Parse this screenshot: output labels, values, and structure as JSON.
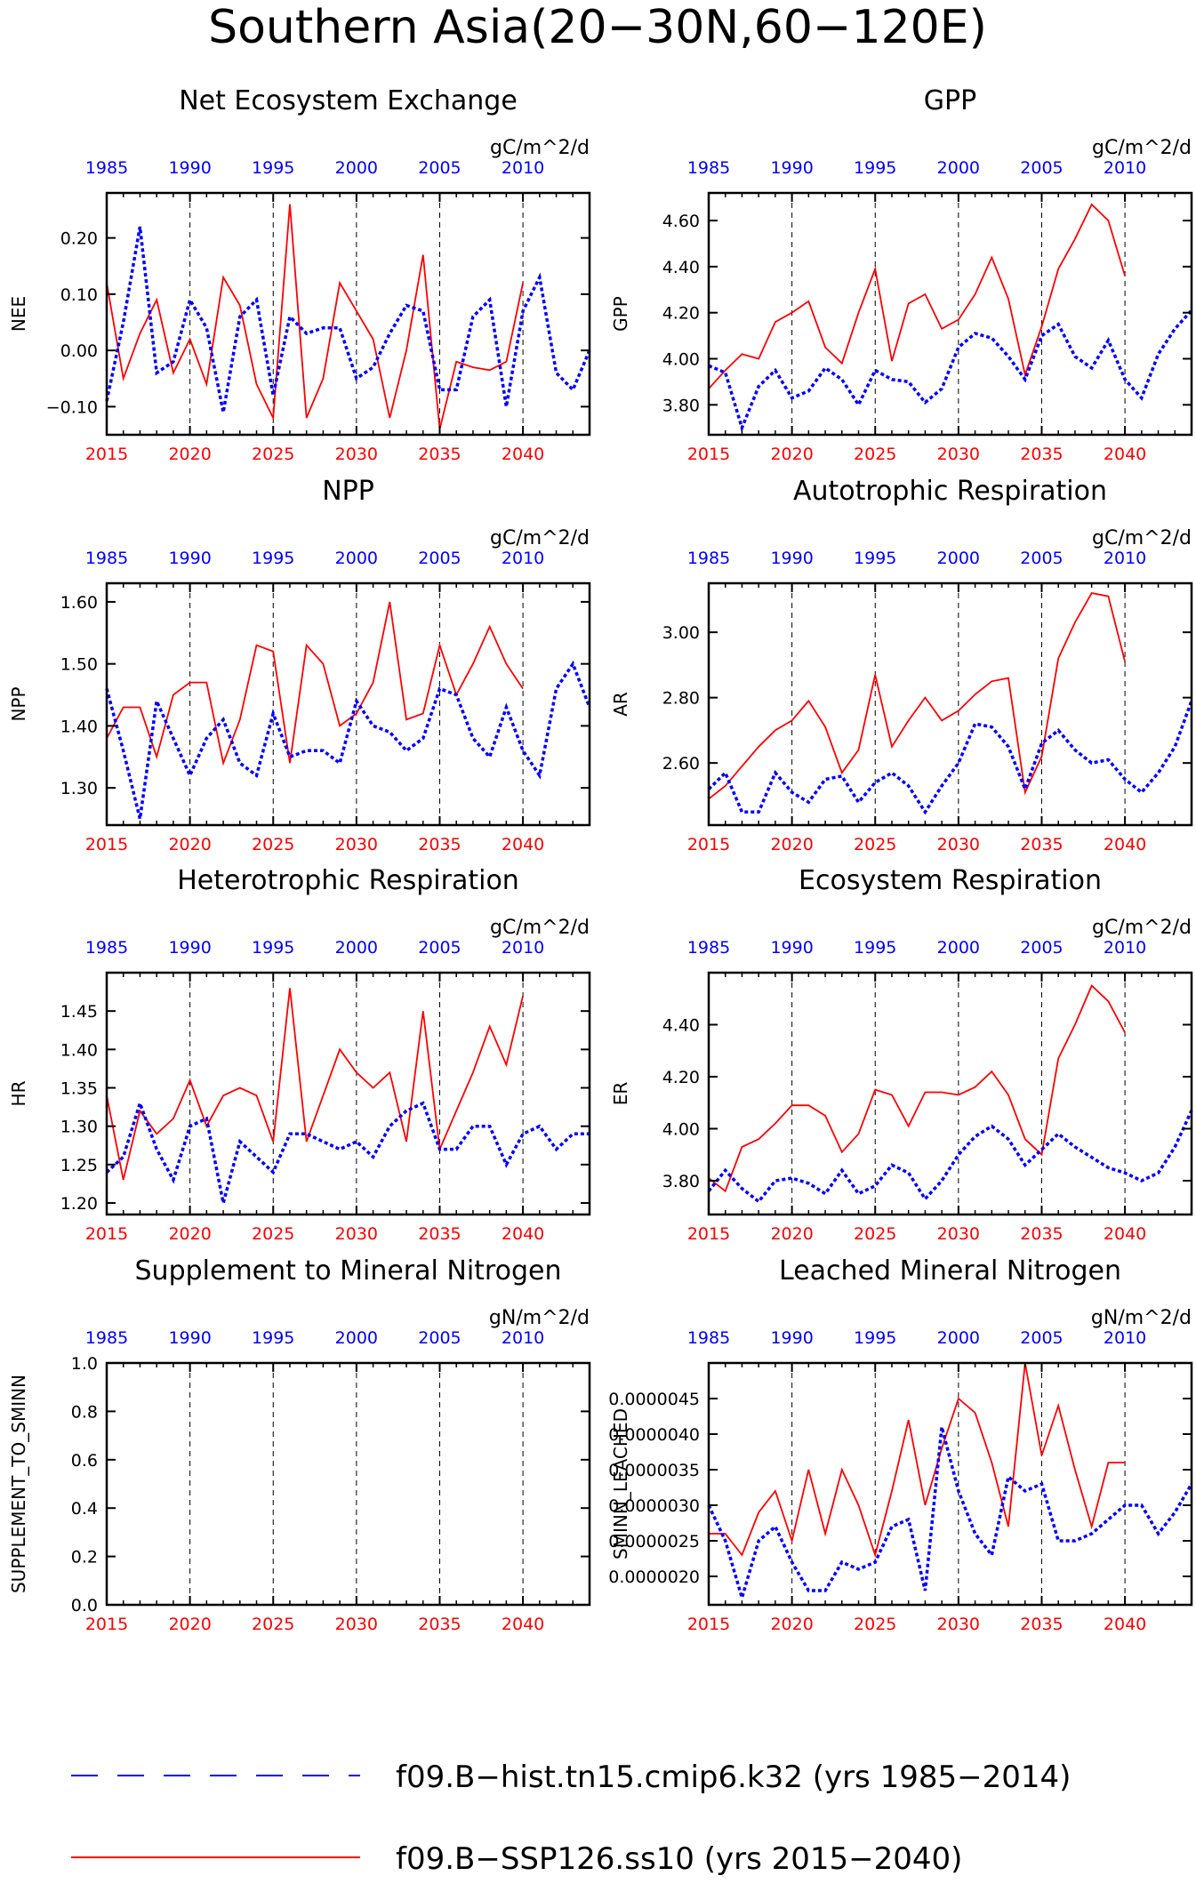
{
  "figure": {
    "title": "Southern Asia(20−30N,60−120E)",
    "bottom_axis_ticks": [
      "2015",
      "2020",
      "2025",
      "2030",
      "2035",
      "2040"
    ],
    "top_axis_ticks": [
      "1985",
      "1990",
      "1995",
      "2000",
      "2005",
      "2010"
    ],
    "colors": {
      "ssp": "#ff0000",
      "hist": "#0000ff",
      "frame": "#000000"
    },
    "legend": [
      {
        "label": "f09.B−hist.tn15.cmip6.k32 (yrs 1985−2014)",
        "style": "dashed",
        "color": "#0000ff"
      },
      {
        "label": "f09.B−SSP126.ss10 (yrs 2015−2040)",
        "style": "solid",
        "color": "#ff0000"
      }
    ]
  },
  "chart_data": [
    {
      "type": "line",
      "title": "Net Ecosystem Exchange",
      "units": "gC/m^2/d",
      "ylabel": "NEE",
      "ylim": [
        -0.15,
        0.28
      ],
      "yticks": [
        -0.1,
        0.0,
        0.1,
        0.2
      ],
      "ytick_labels": [
        "−0.10",
        "0.00",
        "0.10",
        "0.20"
      ],
      "x_bottom": {
        "range": [
          2015,
          2044
        ]
      },
      "x_top": {
        "range": [
          1985,
          2014
        ]
      },
      "series": [
        {
          "name": "f09.B−SSP126.ss10",
          "x_start": 2015,
          "values": [
            0.12,
            -0.05,
            0.03,
            0.09,
            -0.04,
            0.02,
            -0.06,
            0.13,
            0.08,
            -0.06,
            -0.12,
            0.26,
            -0.12,
            -0.05,
            0.12,
            0.07,
            0.02,
            -0.12,
            0.0,
            0.17,
            -0.14,
            -0.02,
            -0.03,
            -0.035,
            -0.02,
            0.12
          ]
        },
        {
          "name": "f09.B−hist.tn15.cmip6.k32",
          "x_start": 1985,
          "values": [
            -0.09,
            0.05,
            0.22,
            -0.04,
            -0.02,
            0.09,
            0.04,
            -0.11,
            0.06,
            0.09,
            -0.08,
            0.06,
            0.03,
            0.04,
            0.04,
            -0.05,
            -0.03,
            0.03,
            0.08,
            0.07,
            -0.07,
            -0.07,
            0.06,
            0.09,
            -0.1,
            0.07,
            0.13,
            -0.04,
            -0.07,
            0.0
          ]
        }
      ]
    },
    {
      "type": "line",
      "title": "GPP",
      "units": "gC/m^2/d",
      "ylabel": "GPP",
      "ylim": [
        3.67,
        4.72
      ],
      "yticks": [
        3.8,
        4.0,
        4.2,
        4.4,
        4.6
      ],
      "ytick_labels": [
        "3.80",
        "4.00",
        "4.20",
        "4.40",
        "4.60"
      ],
      "x_bottom": {
        "range": [
          2015,
          2044
        ]
      },
      "x_top": {
        "range": [
          1985,
          2014
        ]
      },
      "series": [
        {
          "name": "f09.B−SSP126.ss10",
          "x_start": 2015,
          "values": [
            3.87,
            3.95,
            4.02,
            4.0,
            4.16,
            4.2,
            4.25,
            4.05,
            3.98,
            4.2,
            4.39,
            3.99,
            4.24,
            4.28,
            4.13,
            4.17,
            4.28,
            4.44,
            4.26,
            3.93,
            4.14,
            4.39,
            4.52,
            4.67,
            4.6,
            4.36
          ]
        },
        {
          "name": "f09.B−hist.tn15.cmip6.k32",
          "x_start": 1985,
          "values": [
            3.97,
            3.94,
            3.7,
            3.88,
            3.95,
            3.83,
            3.86,
            3.96,
            3.91,
            3.8,
            3.95,
            3.91,
            3.9,
            3.81,
            3.87,
            4.05,
            4.11,
            4.09,
            4.01,
            3.91,
            4.1,
            4.15,
            4.01,
            3.96,
            4.08,
            3.91,
            3.83,
            4.02,
            4.13,
            4.21
          ]
        }
      ]
    },
    {
      "type": "line",
      "title": "NPP",
      "units": "gC/m^2/d",
      "ylabel": "NPP",
      "ylim": [
        1.24,
        1.63
      ],
      "yticks": [
        1.3,
        1.4,
        1.5,
        1.6
      ],
      "ytick_labels": [
        "1.30",
        "1.40",
        "1.50",
        "1.60"
      ],
      "x_bottom": {
        "range": [
          2015,
          2044
        ]
      },
      "x_top": {
        "range": [
          1985,
          2014
        ]
      },
      "series": [
        {
          "name": "f09.B−SSP126.ss10",
          "x_start": 2015,
          "values": [
            1.38,
            1.43,
            1.43,
            1.35,
            1.45,
            1.47,
            1.47,
            1.34,
            1.41,
            1.53,
            1.52,
            1.34,
            1.53,
            1.5,
            1.4,
            1.42,
            1.47,
            1.6,
            1.41,
            1.42,
            1.53,
            1.45,
            1.5,
            1.56,
            1.5,
            1.46
          ]
        },
        {
          "name": "f09.B−hist.tn15.cmip6.k32",
          "x_start": 1985,
          "values": [
            1.46,
            1.36,
            1.25,
            1.44,
            1.38,
            1.32,
            1.38,
            1.41,
            1.34,
            1.32,
            1.42,
            1.35,
            1.36,
            1.36,
            1.34,
            1.44,
            1.4,
            1.39,
            1.36,
            1.38,
            1.46,
            1.45,
            1.38,
            1.35,
            1.43,
            1.36,
            1.32,
            1.46,
            1.5,
            1.43
          ]
        }
      ]
    },
    {
      "type": "line",
      "title": "Autotrophic Respiration",
      "units": "gC/m^2/d",
      "ylabel": "AR",
      "ylim": [
        2.41,
        3.15
      ],
      "yticks": [
        2.6,
        2.8,
        3.0
      ],
      "ytick_labels": [
        "2.60",
        "2.80",
        "3.00"
      ],
      "x_bottom": {
        "range": [
          2015,
          2044
        ]
      },
      "x_top": {
        "range": [
          1985,
          2014
        ]
      },
      "series": [
        {
          "name": "f09.B−SSP126.ss10",
          "x_start": 2015,
          "values": [
            2.49,
            2.53,
            2.59,
            2.65,
            2.7,
            2.73,
            2.79,
            2.71,
            2.57,
            2.64,
            2.87,
            2.65,
            2.73,
            2.8,
            2.73,
            2.76,
            2.81,
            2.85,
            2.86,
            2.51,
            2.62,
            2.92,
            3.03,
            3.12,
            3.11,
            2.91
          ]
        },
        {
          "name": "f09.B−hist.tn15.cmip6.k32",
          "x_start": 1985,
          "values": [
            2.52,
            2.57,
            2.45,
            2.45,
            2.57,
            2.51,
            2.48,
            2.55,
            2.56,
            2.48,
            2.54,
            2.57,
            2.53,
            2.45,
            2.53,
            2.6,
            2.72,
            2.71,
            2.65,
            2.52,
            2.66,
            2.7,
            2.64,
            2.6,
            2.61,
            2.55,
            2.51,
            2.57,
            2.65,
            2.79
          ]
        }
      ]
    },
    {
      "type": "line",
      "title": "Heterotrophic Respiration",
      "units": "gC/m^2/d",
      "ylabel": "HR",
      "ylim": [
        1.185,
        1.5
      ],
      "yticks": [
        1.2,
        1.25,
        1.3,
        1.35,
        1.4,
        1.45
      ],
      "ytick_labels": [
        "1.20",
        "1.25",
        "1.30",
        "1.35",
        "1.40",
        "1.45"
      ],
      "x_bottom": {
        "range": [
          2015,
          2044
        ]
      },
      "x_top": {
        "range": [
          1985,
          2014
        ]
      },
      "series": [
        {
          "name": "f09.B−SSP126.ss10",
          "x_start": 2015,
          "values": [
            1.34,
            1.23,
            1.32,
            1.29,
            1.31,
            1.36,
            1.3,
            1.34,
            1.35,
            1.34,
            1.28,
            1.48,
            1.28,
            1.34,
            1.4,
            1.37,
            1.35,
            1.37,
            1.28,
            1.45,
            1.27,
            1.32,
            1.37,
            1.43,
            1.38,
            1.47
          ]
        },
        {
          "name": "f09.B−hist.tn15.cmip6.k32",
          "x_start": 1985,
          "values": [
            1.24,
            1.26,
            1.33,
            1.27,
            1.23,
            1.3,
            1.31,
            1.2,
            1.28,
            1.26,
            1.24,
            1.29,
            1.29,
            1.28,
            1.27,
            1.28,
            1.26,
            1.3,
            1.32,
            1.33,
            1.27,
            1.27,
            1.3,
            1.3,
            1.25,
            1.29,
            1.3,
            1.27,
            1.29,
            1.29
          ]
        }
      ]
    },
    {
      "type": "line",
      "title": "Ecosystem Respiration",
      "units": "gC/m^2/d",
      "ylabel": "ER",
      "ylim": [
        3.67,
        4.6
      ],
      "yticks": [
        3.8,
        4.0,
        4.2,
        4.4
      ],
      "ytick_labels": [
        "3.80",
        "4.00",
        "4.20",
        "4.40"
      ],
      "x_bottom": {
        "range": [
          2015,
          2044
        ]
      },
      "x_top": {
        "range": [
          1985,
          2014
        ]
      },
      "series": [
        {
          "name": "f09.B−SSP126.ss10",
          "x_start": 2015,
          "values": [
            3.81,
            3.76,
            3.93,
            3.96,
            4.02,
            4.09,
            4.09,
            4.05,
            3.91,
            3.98,
            4.15,
            4.13,
            4.01,
            4.14,
            4.14,
            4.13,
            4.16,
            4.22,
            4.13,
            3.96,
            3.9,
            4.27,
            4.4,
            4.55,
            4.49,
            4.37
          ]
        },
        {
          "name": "f09.B−hist.tn15.cmip6.k32",
          "x_start": 1985,
          "values": [
            3.76,
            3.84,
            3.77,
            3.72,
            3.8,
            3.81,
            3.79,
            3.75,
            3.84,
            3.75,
            3.78,
            3.86,
            3.83,
            3.73,
            3.8,
            3.9,
            3.97,
            4.01,
            3.96,
            3.86,
            3.92,
            3.98,
            3.93,
            3.89,
            3.85,
            3.83,
            3.8,
            3.83,
            3.93,
            4.07
          ]
        }
      ]
    },
    {
      "type": "line",
      "title": "Supplement to Mineral Nitrogen",
      "units": "gN/m^2/d",
      "ylabel": "SUPPLEMENT_TO_SMINN",
      "ylim": [
        0.0,
        1.0
      ],
      "yticks": [
        0.0,
        0.2,
        0.4,
        0.6,
        0.8,
        1.0
      ],
      "ytick_labels": [
        "0.0",
        "0.2",
        "0.4",
        "0.6",
        "0.8",
        "1.0"
      ],
      "x_bottom": {
        "range": [
          2015,
          2044
        ]
      },
      "x_top": {
        "range": [
          1985,
          2014
        ]
      },
      "series": []
    },
    {
      "type": "line",
      "title": "Leached Mineral Nitrogen",
      "units": "gN/m^2/d",
      "ylabel": "SMINN_LEACHED",
      "ylim": [
        1.6e-06,
        5e-06
      ],
      "yticks": [
        2e-06,
        2.5e-06,
        3e-06,
        3.5e-06,
        4e-06,
        4.5e-06
      ],
      "ytick_labels": [
        "0.0000020",
        "0.0000025",
        "0.0000030",
        "0.0000035",
        "0.0000040",
        "0.0000045"
      ],
      "x_bottom": {
        "range": [
          2015,
          2044
        ]
      },
      "x_top": {
        "range": [
          1985,
          2014
        ]
      },
      "series": [
        {
          "name": "f09.B−SSP126.ss10",
          "x_start": 2015,
          "values": [
            2.6e-06,
            2.6e-06,
            2.3e-06,
            2.9e-06,
            3.2e-06,
            2.5e-06,
            3.5e-06,
            2.6e-06,
            3.5e-06,
            3e-06,
            2.3e-06,
            3.2e-06,
            4.2e-06,
            3e-06,
            3.8e-06,
            4.5e-06,
            4.3e-06,
            3.6e-06,
            2.7e-06,
            5e-06,
            3.7e-06,
            4.4e-06,
            3.5e-06,
            2.7e-06,
            3.6e-06,
            3.6e-06
          ]
        },
        {
          "name": "f09.B−hist.tn15.cmip6.k32",
          "x_start": 1985,
          "values": [
            3e-06,
            2.5e-06,
            1.7e-06,
            2.5e-06,
            2.7e-06,
            2.2e-06,
            1.8e-06,
            1.8e-06,
            2.2e-06,
            2.1e-06,
            2.2e-06,
            2.7e-06,
            2.8e-06,
            1.8e-06,
            4.1e-06,
            3.2e-06,
            2.6e-06,
            2.3e-06,
            3.4e-06,
            3.2e-06,
            3.3e-06,
            2.5e-06,
            2.5e-06,
            2.6e-06,
            2.8e-06,
            3e-06,
            3e-06,
            2.6e-06,
            2.9e-06,
            3.3e-06
          ]
        }
      ]
    }
  ]
}
